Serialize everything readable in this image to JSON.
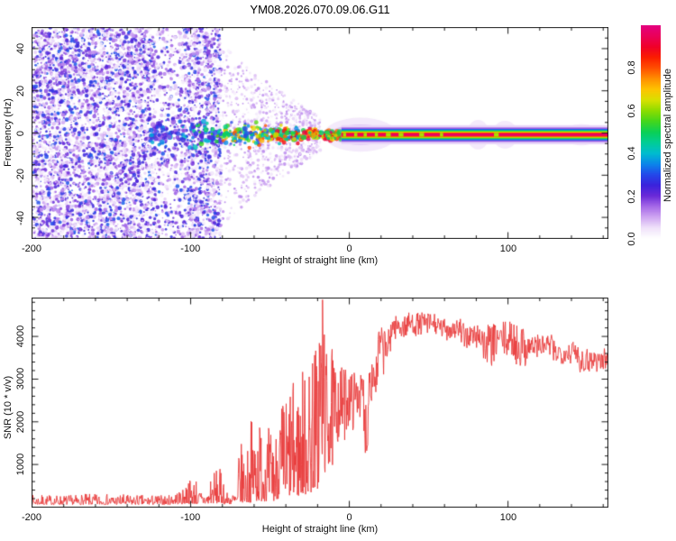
{
  "title": "YM08.2026.070.09.06.G11",
  "frame_color": "#1a1a1a",
  "chart_data": [
    {
      "type": "heatmap",
      "name": "doppler-spectrogram",
      "xlabel": "Height of straight line (km)",
      "ylabel": "Frequency (Hz)",
      "xlim": [
        -200,
        163
      ],
      "ylim": [
        -50,
        50
      ],
      "x_major_ticks": [
        -200,
        -100,
        0,
        100
      ],
      "x_tick_labels": [
        "-200",
        "-100",
        "0",
        "100"
      ],
      "x_minor_step": 20,
      "y_major_ticks": [
        -40,
        -20,
        0,
        20,
        40
      ],
      "y_tick_labels": [
        "-40",
        "-20",
        "0",
        "20",
        "40"
      ],
      "y_minor_step": 5,
      "grid": false,
      "colorbar": {
        "label": "Normalized spectral amplitude",
        "range": [
          0,
          1
        ],
        "ticks": [
          0,
          0.2,
          0.4,
          0.6,
          0.8
        ],
        "tick_labels": [
          "0.0",
          "0.2",
          "0.4",
          "0.6",
          "0.8"
        ],
        "stops": [
          [
            0.0,
            "#ffffff"
          ],
          [
            0.05,
            "#f0e2fa"
          ],
          [
            0.1,
            "#cfa6f2"
          ],
          [
            0.15,
            "#a66ae8"
          ],
          [
            0.2,
            "#6a2ad8"
          ],
          [
            0.25,
            "#3a22dc"
          ],
          [
            0.3,
            "#2448ea"
          ],
          [
            0.35,
            "#0b86ea"
          ],
          [
            0.4,
            "#00bcd0"
          ],
          [
            0.45,
            "#00cd96"
          ],
          [
            0.5,
            "#0bd055"
          ],
          [
            0.55,
            "#44d61c"
          ],
          [
            0.6,
            "#8cdc00"
          ],
          [
            0.65,
            "#d8e000"
          ],
          [
            0.7,
            "#fec400"
          ],
          [
            0.75,
            "#ff9000"
          ],
          [
            0.8,
            "#ff5000"
          ],
          [
            0.85,
            "#fb1e00"
          ],
          [
            0.9,
            "#f00028"
          ],
          [
            0.95,
            "#ea0058"
          ],
          [
            1.0,
            "#e4007e"
          ]
        ]
      },
      "description": "Broadband purple speckle noise fills all frequencies from -200 to -80 km; a 0 Hz echo band appears near -125 km, strengthens through blue/cyan/green with red spots toward 0 km, and continues as a thin continuous red-cored line with green/blue/purple fringes out to 163 km.",
      "content": {
        "seed": 1337,
        "noise_field": {
          "x0": -200,
          "x1": -81,
          "hz_min": -50,
          "hz_max": 50,
          "dots": 6500,
          "r_min": 0.7,
          "r_max": 2.4,
          "i_min": 0.02,
          "i_max": 0.32,
          "light_band": {
            "x0": -122,
            "x1": -104,
            "keep": 0.5
          }
        },
        "streaks": {
          "x0": -81,
          "x1": -18,
          "columns": 60,
          "dots": 900,
          "spread_start": 45,
          "spread_end": 8,
          "i_min": 0.02,
          "i_max": 0.14,
          "r_min": 0.7,
          "r_max": 2.0
        },
        "band_segments": [
          {
            "x0": -126,
            "x1": -98,
            "hw": 8.0,
            "i0": 0.15,
            "i1": 0.42,
            "density": 1.6
          },
          {
            "x0": -98,
            "x1": -80,
            "hw": 9.0,
            "i0": 0.2,
            "i1": 0.58,
            "density": 2.0
          },
          {
            "x0": -80,
            "x1": -55,
            "hw": 7.5,
            "i0": 0.28,
            "i1": 0.82,
            "density": 2.3
          },
          {
            "x0": -55,
            "x1": -30,
            "hw": 5.5,
            "i0": 0.33,
            "i1": 0.95,
            "density": 2.6
          },
          {
            "x0": -30,
            "x1": -5,
            "hw": 3.8,
            "i0": 0.45,
            "i1": 1.0,
            "density": 2.8
          }
        ],
        "line": {
          "x0": -5,
          "x1": 163,
          "center_hz": -0.8,
          "strata": [
            [
              4.5,
              0.06
            ],
            [
              3.4,
              0.16
            ],
            [
              2.7,
              0.32
            ],
            [
              2.2,
              0.44
            ],
            [
              1.8,
              0.56
            ],
            [
              1.4,
              0.68
            ],
            [
              1.0,
              0.82
            ],
            [
              0.6,
              0.96
            ]
          ],
          "core_gaps": [
            [
              -4,
              -2
            ],
            [
              3,
              5
            ],
            [
              9,
              11
            ],
            [
              16,
              18
            ],
            [
              23,
              26
            ],
            [
              31,
              34
            ],
            [
              44,
              47
            ],
            [
              57,
              59
            ],
            [
              91,
              94
            ]
          ],
          "gap_intensity": 0.62,
          "bulges": [
            [
              -16,
              30,
              8
            ],
            [
              74,
              88,
              7
            ],
            [
              90,
              106,
              6.5
            ],
            [
              134,
              158,
              5
            ]
          ],
          "bulge_intensity": 0.06
        }
      }
    },
    {
      "type": "line",
      "name": "snr-profile",
      "xlabel": "Height of straight line (km)",
      "ylabel": "SNR (10 * v/v)",
      "xlim": [
        -200,
        163
      ],
      "ylim": [
        0,
        4900
      ],
      "x_major_ticks": [
        -200,
        -100,
        0,
        100
      ],
      "x_tick_labels": [
        "-200",
        "-100",
        "0",
        "100"
      ],
      "x_minor_step": 20,
      "y_major_ticks": [
        1000,
        2000,
        3000,
        4000
      ],
      "y_tick_labels": [
        "1000",
        "2000",
        "3000",
        "4000"
      ],
      "y_minor_step": 200,
      "grid": false,
      "seed": 7,
      "description": "Noisy red SNR trace: flat floor (~100-300) from -200 to -110 km, small bumps near -100 and -84 km, growing spike clusters from -70 to -20 km, extreme spikes to ~4850 near -17 km, then a rapid rise after 0 km to a ~4300-4500 plateau near 30-60 km followed by a slow noisy decline to ~3400 at 163 km.",
      "series": [
        {
          "name": "SNR",
          "color": "#e93a3a",
          "envelope_segments": [
            [
              -200,
              -170,
              70,
              300,
              90,
              2,
              0
            ],
            [
              -170,
              -140,
              70,
              320,
              90,
              2,
              0
            ],
            [
              -140,
              -112,
              70,
              300,
              85,
              2,
              0
            ],
            [
              -112,
              -104,
              80,
              420,
              25,
              1.8,
              0
            ],
            [
              -104,
              -96,
              90,
              700,
              30,
              2,
              0
            ],
            [
              -96,
              -88,
              80,
              420,
              25,
              2,
              0
            ],
            [
              -88,
              -79,
              100,
              900,
              32,
              2.2,
              0
            ],
            [
              -79,
              -70,
              80,
              380,
              28,
              2,
              0
            ],
            [
              -70,
              -62,
              120,
              1500,
              30,
              2.2,
              0
            ],
            [
              -62,
              -54,
              150,
              2100,
              34,
              1.9,
              0
            ],
            [
              -54,
              -46,
              150,
              1900,
              34,
              1.9,
              0
            ],
            [
              -46,
              -38,
              200,
              2600,
              34,
              1.8,
              0
            ],
            [
              -38,
              -30,
              250,
              2950,
              34,
              1.7,
              0
            ],
            [
              -30,
              -24,
              300,
              3300,
              26,
              1.6,
              0
            ],
            [
              -24,
              -19,
              400,
              3900,
              22,
              1.5,
              0
            ],
            [
              -19,
              -15,
              700,
              4850,
              18,
              1.2,
              1
            ],
            [
              -15,
              -9,
              900,
              3700,
              24,
              1.3,
              0
            ],
            [
              -9,
              -2,
              1500,
              3300,
              26,
              1,
              0
            ],
            [
              -2,
              4,
              1800,
              3200,
              22,
              0.9,
              0
            ],
            [
              4,
              9,
              2100,
              3100,
              18,
              0.8,
              0
            ],
            [
              9,
              12,
              1200,
              2700,
              10,
              1.2,
              0
            ],
            [
              12,
              18,
              2400,
              3600,
              20,
              0.8,
              0
            ],
            [
              18,
              26,
              3100,
              4200,
              26,
              0.7,
              0
            ],
            [
              26,
              36,
              3900,
              4480,
              32,
              0.8,
              0
            ],
            [
              36,
              55,
              4000,
              4550,
              60,
              0.9,
              1
            ],
            [
              55,
              70,
              3900,
              4420,
              48,
              0.9,
              0
            ],
            [
              70,
              84,
              3700,
              4300,
              44,
              1,
              0
            ],
            [
              84,
              92,
              3300,
              4300,
              28,
              1.1,
              0
            ],
            [
              92,
              104,
              3500,
              4350,
              38,
              1,
              0
            ],
            [
              104,
              112,
              3300,
              4300,
              26,
              1.1,
              0
            ],
            [
              112,
              128,
              3500,
              4050,
              48,
              1,
              0
            ],
            [
              128,
              144,
              3350,
              3900,
              48,
              1,
              0
            ],
            [
              144,
              163,
              3150,
              3750,
              56,
              1,
              0
            ]
          ]
        }
      ]
    }
  ]
}
